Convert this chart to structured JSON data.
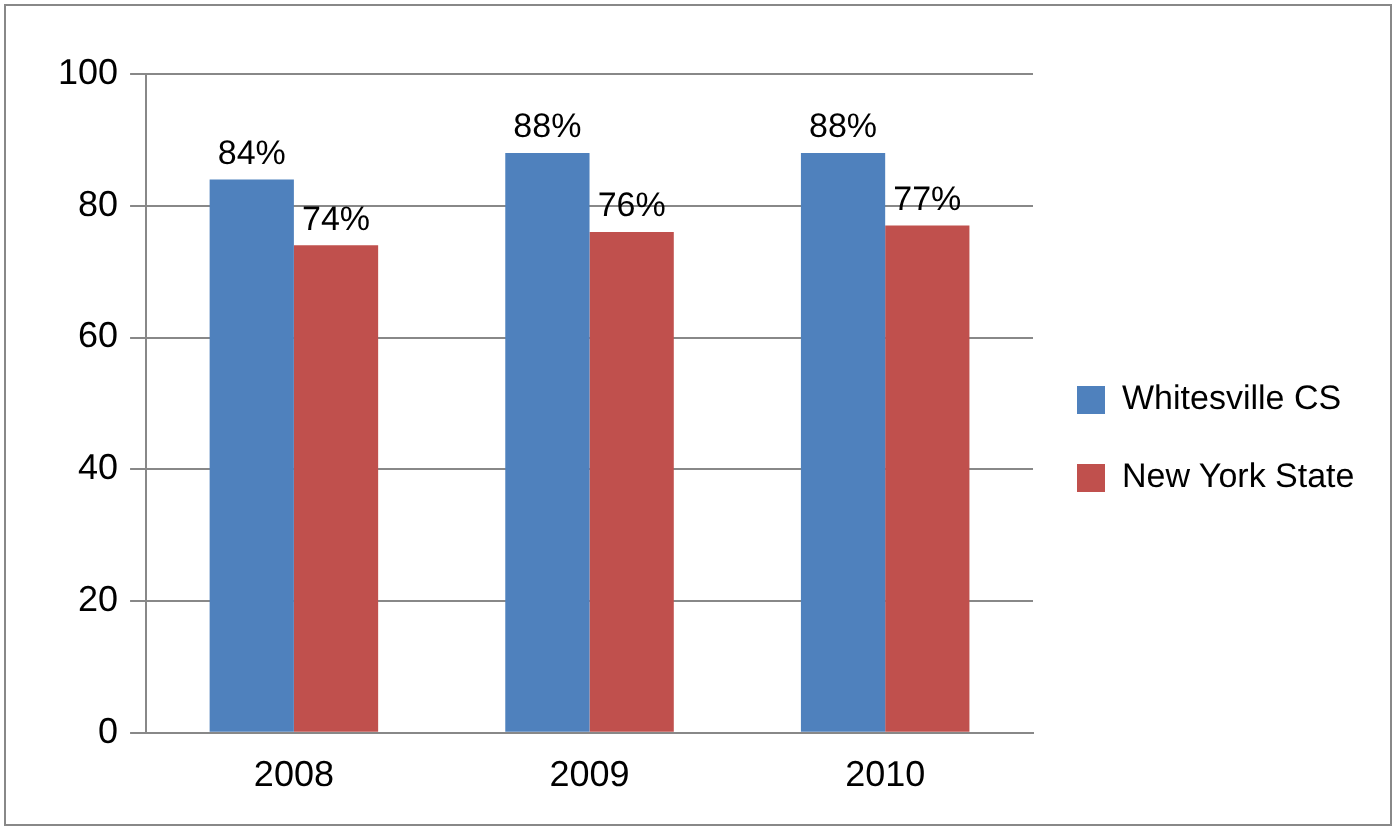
{
  "chart_data": {
    "type": "bar",
    "categories": [
      "2008",
      "2009",
      "2010"
    ],
    "series": [
      {
        "name": "Whitesville CS",
        "color": "#4f81bd",
        "values": [
          84,
          88,
          88
        ],
        "value_labels": [
          "84%",
          "88%",
          "88%"
        ]
      },
      {
        "name": "New York State",
        "color": "#c0504d",
        "values": [
          74,
          76,
          77
        ],
        "value_labels": [
          "74%",
          "76%",
          "77%"
        ]
      }
    ],
    "ylim": [
      0,
      100
    ],
    "yticks": [
      0,
      20,
      40,
      60,
      80,
      100
    ],
    "grid": "y",
    "legend": "right"
  }
}
